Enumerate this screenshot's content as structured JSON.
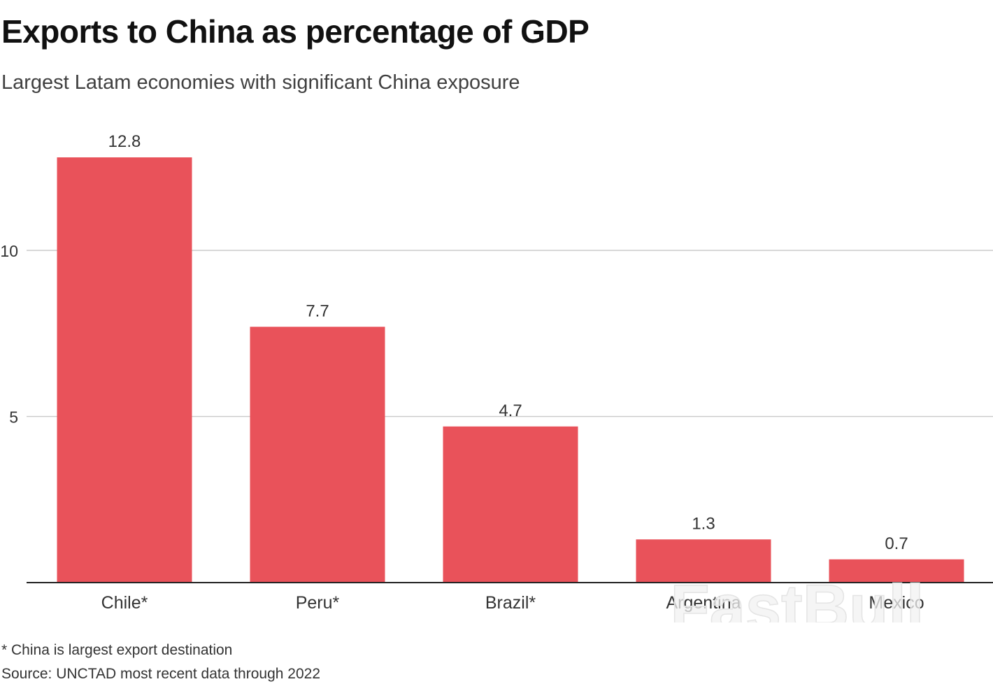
{
  "chart_data": {
    "type": "bar",
    "title": "Exports to China as percentage of GDP",
    "subtitle": "Largest Latam economies with significant China exposure",
    "categories": [
      "Chile*",
      "Peru*",
      "Brazil*",
      "Argentina",
      "Mexico"
    ],
    "values": [
      12.8,
      7.7,
      4.7,
      1.3,
      0.7
    ],
    "value_labels": [
      "12.8",
      "7.7",
      "4.7",
      "1.3",
      "0.7"
    ],
    "xlabel": "",
    "ylabel": "",
    "ylim": [
      0,
      14.5
    ],
    "yticks": [
      5,
      10
    ],
    "ytick_labels": [
      "5",
      "10"
    ],
    "grid": true,
    "bar_color": "#E9525A",
    "footnote": "* China is largest export destination",
    "source": "Source: UNCTAD most recent data through 2022"
  },
  "watermark": "FastBull"
}
